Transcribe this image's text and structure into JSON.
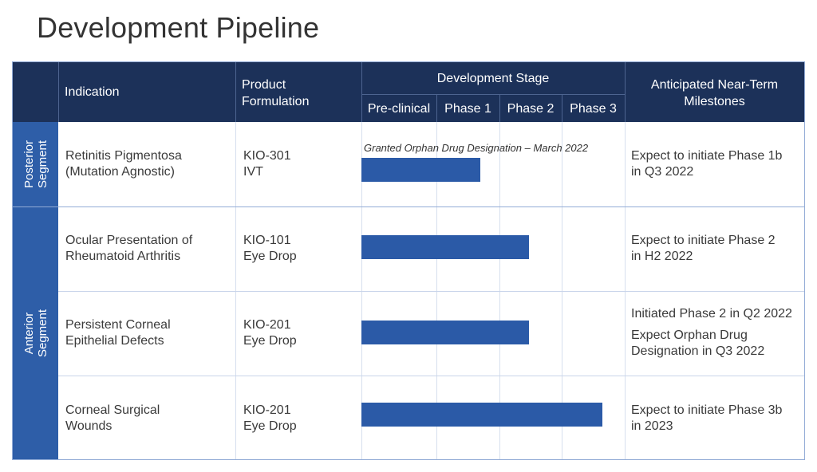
{
  "title": "Development Pipeline",
  "header": {
    "indication": "Indication",
    "product_line1": "Product",
    "product_line2": "Formulation",
    "dev_stage": "Development Stage",
    "milestones_line1": "Anticipated Near-Term",
    "milestones_line2": "Milestones",
    "stages": [
      "Pre-clinical",
      "Phase 1",
      "Phase 2",
      "Phase 3"
    ]
  },
  "segments": {
    "posterior_line1": "Posterior",
    "posterior_line2": "Segment",
    "anterior_line1": "Anterior",
    "anterior_line2": "Segment"
  },
  "rows": [
    {
      "indication_line1": "Retinitis Pigmentosa",
      "indication_line2": "(Mutation Agnostic)",
      "product_line1": "KIO-301",
      "product_line2": "IVT",
      "progress_fraction": 0.45,
      "note": "Granted Orphan Drug Designation – March 2022",
      "milestone_line1": "Expect to initiate Phase 1b",
      "milestone_line2": "in Q3 2022"
    },
    {
      "indication_line1": "Ocular Presentation of",
      "indication_line2": "Rheumatoid Arthritis",
      "product_line1": "KIO-101",
      "product_line2": "Eye Drop",
      "progress_fraction": 0.635,
      "milestone_line1": "Expect to initiate Phase 2",
      "milestone_line2": "in H2 2022"
    },
    {
      "indication_line1": "Persistent Corneal",
      "indication_line2": "Epithelial Defects",
      "product_line1": "KIO-201",
      "product_line2": "Eye Drop",
      "progress_fraction": 0.635,
      "milestone_line1": "Initiated Phase 2 in Q2 2022",
      "milestone_line2": "Expect Orphan Drug",
      "milestone_line3": "Designation in Q3 2022"
    },
    {
      "indication_line1": "Corneal Surgical",
      "indication_line2": "Wounds",
      "product_line1": "KIO-201",
      "product_line2": "Eye Drop",
      "progress_fraction": 0.915,
      "milestone_line1": "Expect to initiate Phase 3b",
      "milestone_line2": "in 2023"
    }
  ],
  "colors": {
    "header_bg": "#1c3159",
    "segment_bg": "#2e5ea8",
    "bar": "#2b5aa7",
    "border": "#93acd6"
  }
}
